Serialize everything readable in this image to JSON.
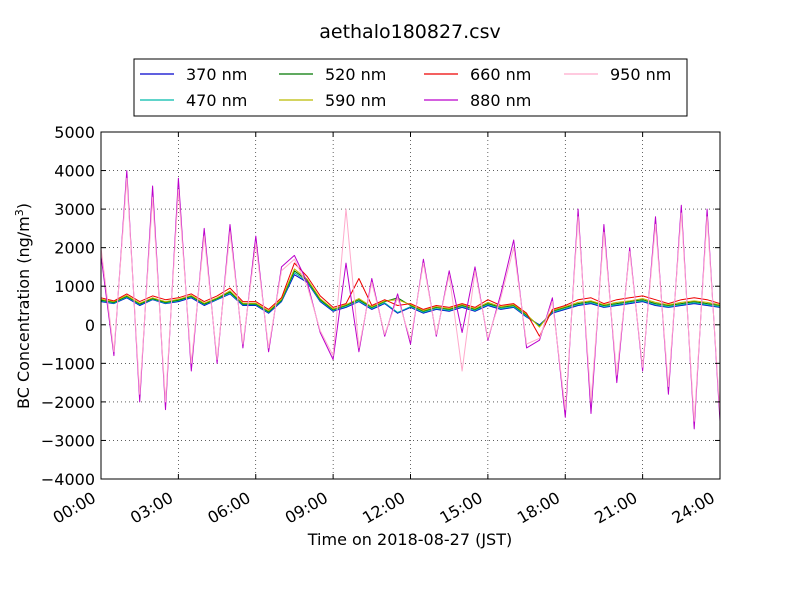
{
  "chart_data": {
    "type": "line",
    "title": "aethalo180827.csv",
    "xlabel": "Time on 2018-08-27 (JST)",
    "ylabel": {
      "prefix": "BC Concentration (ng/m",
      "sup": "3",
      "suffix": ")"
    },
    "xlim": [
      "00:00",
      "24:00"
    ],
    "ylim": [
      -4000,
      5000
    ],
    "xticks": [
      "00:00",
      "03:00",
      "06:00",
      "09:00",
      "12:00",
      "15:00",
      "18:00",
      "21:00",
      "24:00"
    ],
    "yticks": [
      "−4000",
      "−3000",
      "−2000",
      "−1000",
      "0",
      "1000",
      "2000",
      "3000",
      "4000",
      "5000"
    ],
    "grid": true,
    "legend_position": "top",
    "x": [
      "00:00",
      "00:30",
      "01:00",
      "01:30",
      "02:00",
      "02:30",
      "03:00",
      "03:30",
      "04:00",
      "04:30",
      "05:00",
      "05:30",
      "06:00",
      "06:30",
      "07:00",
      "07:30",
      "08:00",
      "08:30",
      "09:00",
      "09:30",
      "10:00",
      "10:30",
      "11:00",
      "11:30",
      "12:00",
      "12:30",
      "13:00",
      "13:30",
      "14:00",
      "14:30",
      "15:00",
      "15:30",
      "16:00",
      "16:30",
      "17:00",
      "17:30",
      "18:00",
      "18:30",
      "19:00",
      "19:30",
      "20:00",
      "20:30",
      "21:00",
      "21:30",
      "22:00",
      "22:30",
      "23:00",
      "23:30",
      "24:00"
    ],
    "series": [
      {
        "name": "370 nm",
        "color": "#0000cc",
        "values": [
          600,
          550,
          700,
          500,
          650,
          550,
          600,
          700,
          500,
          650,
          800,
          500,
          500,
          300,
          600,
          1300,
          1100,
          600,
          350,
          450,
          600,
          400,
          550,
          300,
          450,
          300,
          400,
          350,
          450,
          350,
          500,
          400,
          450,
          200,
          0,
          300,
          400,
          500,
          550,
          450,
          500,
          550,
          600,
          500,
          450,
          500,
          550,
          500,
          450
        ]
      },
      {
        "name": "470 nm",
        "color": "#00bbaa",
        "values": [
          620,
          560,
          720,
          520,
          660,
          560,
          620,
          720,
          520,
          660,
          820,
          520,
          520,
          320,
          620,
          1350,
          1120,
          620,
          370,
          470,
          620,
          420,
          570,
          320,
          470,
          320,
          420,
          370,
          470,
          370,
          520,
          420,
          470,
          220,
          -20,
          320,
          420,
          520,
          570,
          470,
          520,
          570,
          620,
          520,
          470,
          520,
          570,
          520,
          470
        ]
      },
      {
        "name": "520 nm",
        "color": "#007700",
        "values": [
          640,
          580,
          740,
          540,
          680,
          580,
          640,
          740,
          540,
          680,
          850,
          540,
          540,
          340,
          640,
          1400,
          1150,
          650,
          390,
          500,
          650,
          450,
          600,
          700,
          500,
          350,
          450,
          400,
          500,
          400,
          550,
          450,
          500,
          250,
          -40,
          350,
          450,
          550,
          600,
          500,
          550,
          600,
          650,
          550,
          500,
          550,
          600,
          550,
          500
        ]
      },
      {
        "name": "590 nm",
        "color": "#bbbb00",
        "values": [
          660,
          600,
          760,
          560,
          700,
          600,
          660,
          760,
          560,
          700,
          880,
          560,
          560,
          360,
          660,
          1450,
          1180,
          680,
          410,
          520,
          680,
          470,
          620,
          650,
          520,
          370,
          470,
          420,
          520,
          420,
          580,
          470,
          520,
          270,
          -60,
          370,
          470,
          580,
          620,
          520,
          580,
          620,
          680,
          580,
          520,
          580,
          620,
          580,
          520
        ]
      },
      {
        "name": "660 nm",
        "color": "#ee0000",
        "values": [
          700,
          620,
          800,
          600,
          750,
          650,
          700,
          800,
          600,
          750,
          950,
          600,
          600,
          400,
          700,
          1600,
          1250,
          750,
          450,
          550,
          1200,
          500,
          650,
          500,
          550,
          400,
          500,
          450,
          550,
          450,
          650,
          500,
          550,
          300,
          -300,
          400,
          500,
          650,
          700,
          550,
          650,
          700,
          750,
          650,
          550,
          650,
          700,
          650,
          550
        ]
      },
      {
        "name": "880 nm",
        "color": "#bb00cc",
        "values": [
          1800,
          -800,
          4000,
          -2000,
          3600,
          -2200,
          3800,
          -1200,
          2500,
          -1000,
          2600,
          -600,
          2300,
          -700,
          1500,
          1800,
          1100,
          -200,
          -900,
          1600,
          -700,
          1200,
          -300,
          800,
          -500,
          1700,
          -300,
          1400,
          -200,
          1500,
          -400,
          800,
          2200,
          -600,
          -400,
          700,
          -2400,
          3000,
          -2300,
          2600,
          -1500,
          2000,
          -1200,
          2800,
          -1800,
          3100,
          -2700,
          3000,
          -2500
        ]
      },
      {
        "name": "950 nm",
        "color": "#ffaacc",
        "values": [
          2000,
          -700,
          3800,
          -1800,
          3300,
          -2000,
          3500,
          -1000,
          2300,
          -900,
          2400,
          -500,
          2100,
          -600,
          1400,
          1700,
          1000,
          -150,
          -800,
          3000,
          -600,
          1100,
          -250,
          700,
          -400,
          1600,
          -250,
          1300,
          -1200,
          1400,
          -350,
          700,
          2000,
          -500,
          -350,
          600,
          -2200,
          2800,
          -2000,
          2400,
          -1300,
          1900,
          -1100,
          2600,
          -1600,
          2900,
          -2500,
          2800,
          -2300
        ]
      }
    ]
  }
}
